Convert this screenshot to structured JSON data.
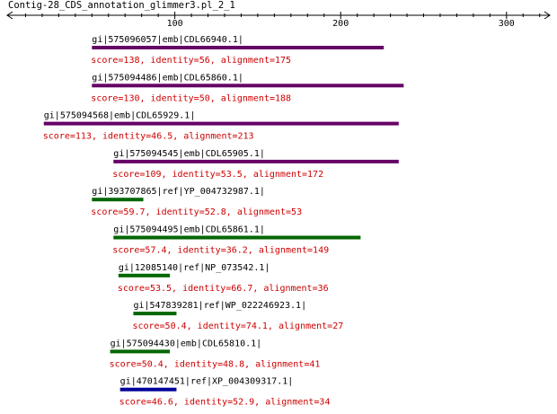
{
  "title": "Contig-28_CDS_annotation_glimmer3.pl_2_1",
  "axis": {
    "min": 0,
    "max": 320,
    "major_ticks": [
      100,
      200,
      300
    ],
    "minor_step": 10
  },
  "colors": {
    "axis": "#000000",
    "label": "#000000",
    "stats": "#cc0000",
    "purple": "#660066",
    "green": "#006600",
    "blue": "#000099"
  },
  "hits": [
    {
      "id": "gi|575096057|emb|CDL66940.1|",
      "start": 50,
      "end": 226,
      "color": "purple",
      "stats": "score=138, identity=56, alignment=175"
    },
    {
      "id": "gi|575094486|emb|CDL65860.1|",
      "start": 50,
      "end": 238,
      "color": "purple",
      "stats": "score=130, identity=50, alignment=188"
    },
    {
      "id": "gi|575094568|emb|CDL65929.1|",
      "start": 21,
      "end": 235,
      "color": "purple",
      "stats": "score=113, identity=46.5, alignment=213"
    },
    {
      "id": "gi|575094545|emb|CDL65905.1|",
      "start": 63,
      "end": 235,
      "color": "purple",
      "stats": "score=109, identity=53.5, alignment=172"
    },
    {
      "id": "gi|393707865|ref|YP_004732987.1|",
      "start": 50,
      "end": 81,
      "color": "green",
      "stats": "score=59.7, identity=52.8, alignment=53"
    },
    {
      "id": "gi|575094495|emb|CDL65861.1|",
      "start": 63,
      "end": 212,
      "color": "green",
      "stats": "score=57.4, identity=36.2, alignment=149"
    },
    {
      "id": "gi|12085140|ref|NP_073542.1|",
      "start": 66,
      "end": 97,
      "color": "green",
      "stats": "score=53.5, identity=66.7, alignment=36"
    },
    {
      "id": "gi|547839281|ref|WP_022246923.1|",
      "start": 75,
      "end": 101,
      "color": "green",
      "stats": "score=50.4, identity=74.1, alignment=27"
    },
    {
      "id": "gi|575094430|emb|CDL65810.1|",
      "start": 61,
      "end": 97,
      "color": "green",
      "stats": "score=50.4, identity=48.8, alignment=41"
    },
    {
      "id": "gi|470147451|ref|XP_004309317.1|",
      "start": 67,
      "end": 101,
      "color": "blue",
      "stats": "score=46.6, identity=52.9, alignment=34"
    }
  ]
}
